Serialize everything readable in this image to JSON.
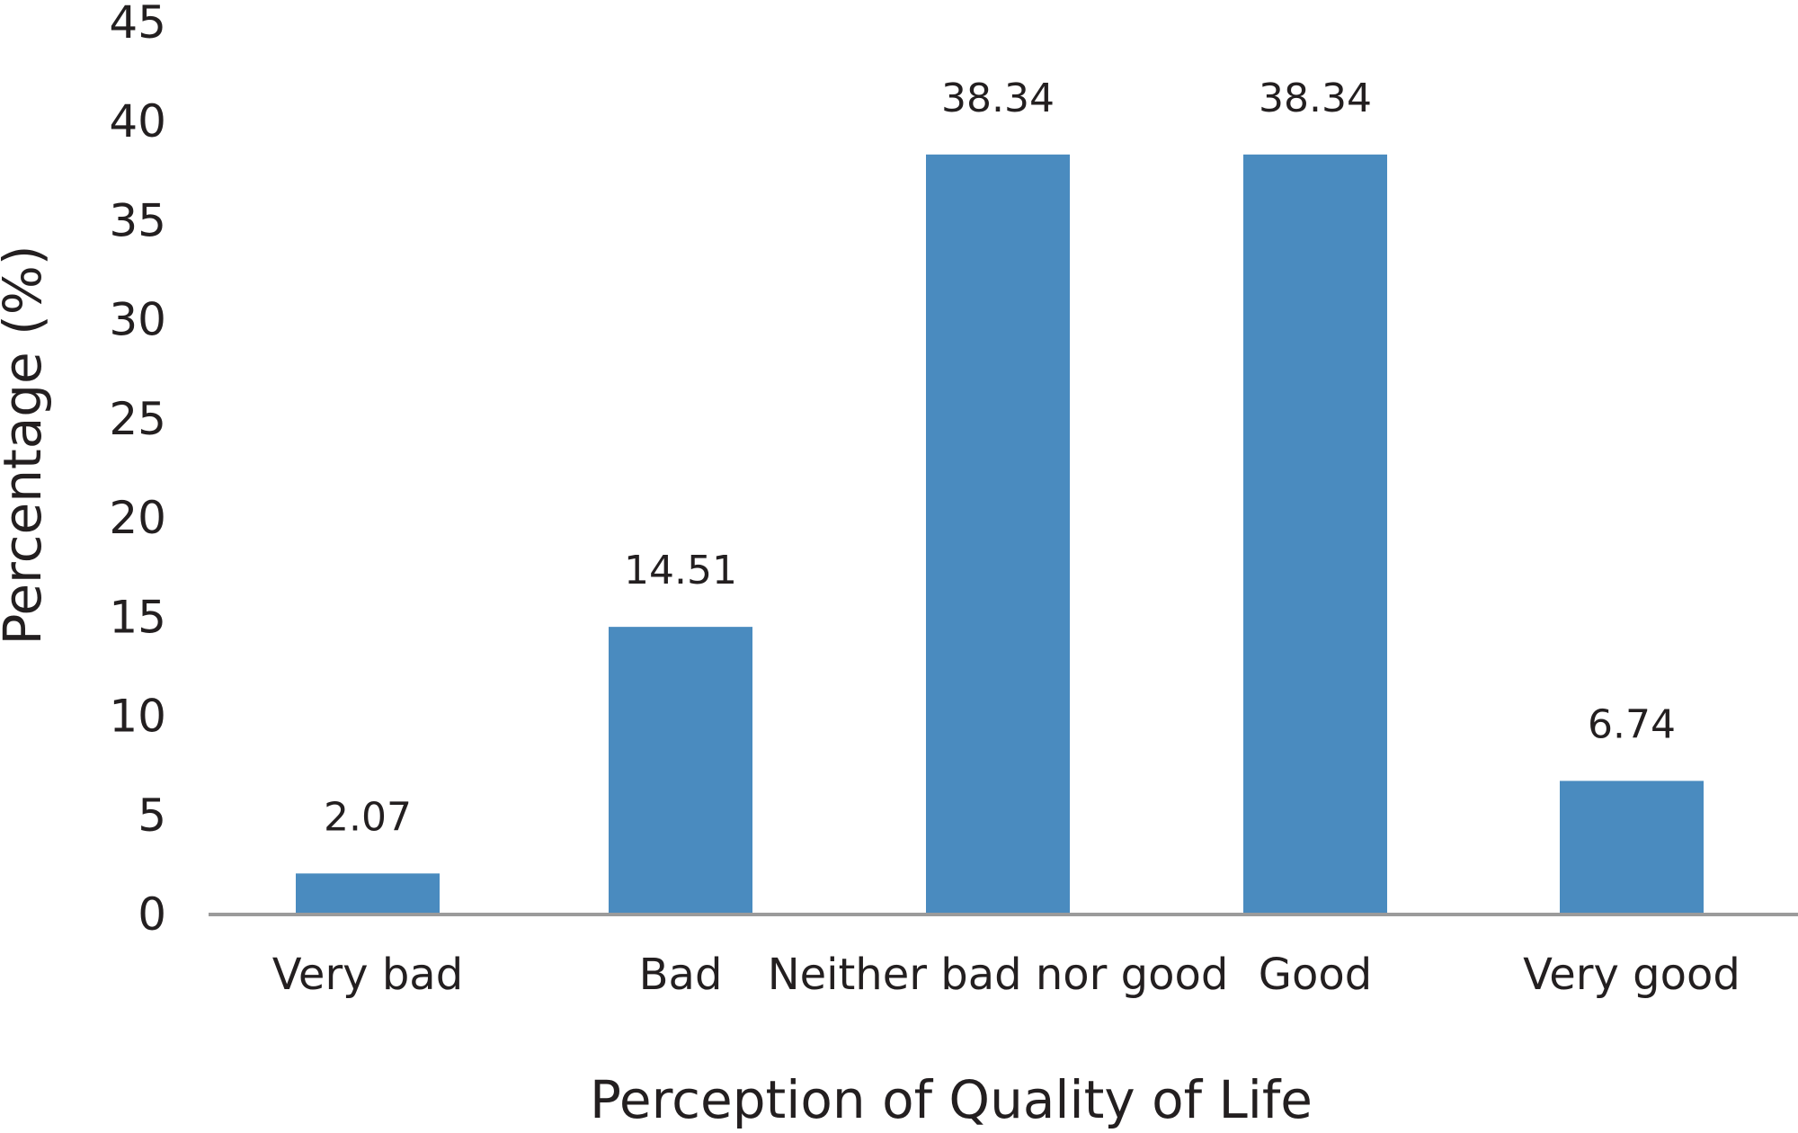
{
  "chart_data": {
    "type": "bar",
    "title": "",
    "xlabel": "Perception of Quality of Life",
    "ylabel": "Percentage (%)",
    "categories": [
      "Very bad",
      "Bad",
      "Neither bad nor good",
      "Good",
      "Very good"
    ],
    "values": [
      2.07,
      14.51,
      38.34,
      38.34,
      6.74
    ],
    "data_labels": [
      "2.07",
      "14.51",
      "38.34",
      "38.34",
      "6.74"
    ],
    "ylim": [
      0,
      45
    ],
    "yticks": [
      0,
      5,
      10,
      15,
      20,
      25,
      30,
      35,
      40,
      45
    ],
    "grid": false,
    "legend": "none",
    "bar_color": "#4a8bbf",
    "axis_color": "#9b9b9b",
    "text_color": "#231f20"
  }
}
